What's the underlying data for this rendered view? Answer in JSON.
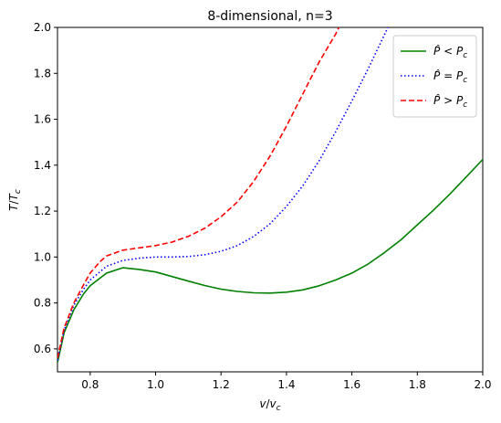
{
  "chart_data": {
    "type": "line",
    "title": "8-dimensional, n=3",
    "xlabel": "v/v_c",
    "ylabel": "T/T_c",
    "xlim": [
      0.7,
      2.0
    ],
    "ylim": [
      0.5,
      2.0
    ],
    "xticks": [
      "0.8",
      "1.0",
      "1.2",
      "1.4",
      "1.6",
      "1.8",
      "2.0"
    ],
    "yticks": [
      "0.6",
      "0.8",
      "1.0",
      "1.2",
      "1.4",
      "1.6",
      "1.8",
      "2.0"
    ],
    "grid": false,
    "legend_position": "top-right",
    "series": [
      {
        "name": "P̂ < P_c",
        "color": "#008000",
        "style": "solid",
        "points": [
          [
            0.7,
            0.54
          ],
          [
            0.72,
            0.67
          ],
          [
            0.75,
            0.77
          ],
          [
            0.78,
            0.84
          ],
          [
            0.8,
            0.875
          ],
          [
            0.85,
            0.93
          ],
          [
            0.9,
            0.953
          ],
          [
            0.95,
            0.946
          ],
          [
            1.0,
            0.935
          ],
          [
            1.05,
            0.915
          ],
          [
            1.1,
            0.895
          ],
          [
            1.15,
            0.876
          ],
          [
            1.2,
            0.86
          ],
          [
            1.25,
            0.85
          ],
          [
            1.3,
            0.844
          ],
          [
            1.35,
            0.843
          ],
          [
            1.4,
            0.847
          ],
          [
            1.45,
            0.857
          ],
          [
            1.5,
            0.875
          ],
          [
            1.55,
            0.9
          ],
          [
            1.6,
            0.93
          ],
          [
            1.65,
            0.97
          ],
          [
            1.7,
            1.02
          ],
          [
            1.75,
            1.075
          ],
          [
            1.8,
            1.14
          ],
          [
            1.85,
            1.205
          ],
          [
            1.9,
            1.275
          ],
          [
            1.95,
            1.35
          ],
          [
            2.0,
            1.425
          ]
        ]
      },
      {
        "name": "P̂ = P_c",
        "color": "#0000ff",
        "style": "dotted",
        "points": [
          [
            0.7,
            0.55
          ],
          [
            0.72,
            0.68
          ],
          [
            0.75,
            0.79
          ],
          [
            0.78,
            0.86
          ],
          [
            0.8,
            0.9
          ],
          [
            0.85,
            0.96
          ],
          [
            0.9,
            0.985
          ],
          [
            0.95,
            0.995
          ],
          [
            1.0,
            1.0
          ],
          [
            1.05,
            1.0
          ],
          [
            1.1,
            1.002
          ],
          [
            1.15,
            1.01
          ],
          [
            1.2,
            1.025
          ],
          [
            1.25,
            1.05
          ],
          [
            1.3,
            1.09
          ],
          [
            1.35,
            1.145
          ],
          [
            1.4,
            1.22
          ],
          [
            1.45,
            1.31
          ],
          [
            1.5,
            1.42
          ],
          [
            1.55,
            1.545
          ],
          [
            1.6,
            1.68
          ],
          [
            1.65,
            1.82
          ],
          [
            1.7,
            1.97
          ],
          [
            1.72,
            2.03
          ]
        ]
      },
      {
        "name": "P̂ > P_c",
        "color": "#ff0000",
        "style": "dashed",
        "points": [
          [
            0.7,
            0.56
          ],
          [
            0.72,
            0.69
          ],
          [
            0.75,
            0.8
          ],
          [
            0.78,
            0.88
          ],
          [
            0.8,
            0.93
          ],
          [
            0.83,
            0.98
          ],
          [
            0.85,
            1.005
          ],
          [
            0.9,
            1.03
          ],
          [
            0.95,
            1.04
          ],
          [
            1.0,
            1.05
          ],
          [
            1.05,
            1.065
          ],
          [
            1.1,
            1.09
          ],
          [
            1.15,
            1.125
          ],
          [
            1.2,
            1.175
          ],
          [
            1.25,
            1.24
          ],
          [
            1.3,
            1.33
          ],
          [
            1.35,
            1.44
          ],
          [
            1.4,
            1.57
          ],
          [
            1.45,
            1.71
          ],
          [
            1.5,
            1.85
          ],
          [
            1.55,
            1.97
          ],
          [
            1.57,
            2.03
          ]
        ]
      }
    ]
  }
}
